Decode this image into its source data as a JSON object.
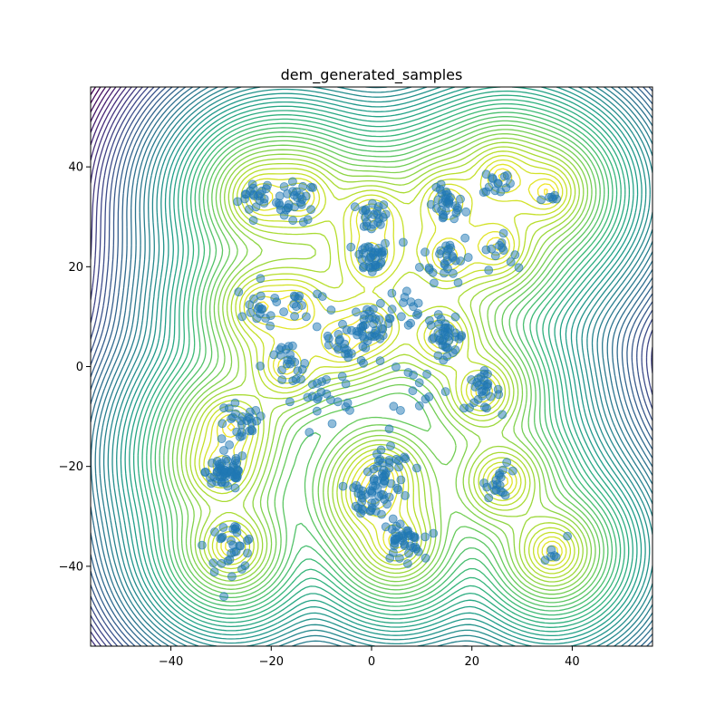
{
  "chart_data": {
    "type": "scatter",
    "title": "dem_generated_samples",
    "xlabel": "",
    "ylabel": "",
    "xlim": [
      -56,
      56
    ],
    "ylim": [
      -56,
      56
    ],
    "xticks": [
      -40,
      -20,
      0,
      20,
      40
    ],
    "yticks": [
      -40,
      -20,
      0,
      20,
      40
    ],
    "xtick_labels": [
      "−40",
      "−20",
      "0",
      "20",
      "40"
    ],
    "ytick_labels": [
      "−40",
      "−20",
      "0",
      "20",
      "40"
    ],
    "background": "contour",
    "contour_colormap": "viridis",
    "point_color": "#1f77b4",
    "point_alpha": 0.5,
    "grid": false,
    "mode_centers": [
      [
        -22,
        34
      ],
      [
        -14,
        34
      ],
      [
        0,
        30
      ],
      [
        15,
        33
      ],
      [
        26,
        38
      ],
      [
        35,
        35
      ],
      [
        0,
        22
      ],
      [
        15,
        22
      ],
      [
        25,
        24
      ],
      [
        -22,
        12
      ],
      [
        -15,
        12
      ],
      [
        0,
        8
      ],
      [
        14,
        6
      ],
      [
        22,
        -5
      ],
      [
        -30,
        -20
      ],
      [
        -28,
        -12
      ],
      [
        2,
        -22
      ],
      [
        0,
        -26
      ],
      [
        26,
        -23
      ],
      [
        -28,
        -36
      ],
      [
        5,
        -35
      ],
      [
        36,
        -37
      ],
      [
        -17,
        0
      ],
      [
        -6,
        5
      ]
    ],
    "point_clusters": [
      {
        "center": [
          -23,
          34
        ],
        "count": 20,
        "spread": 1.8
      },
      {
        "center": [
          -15,
          33
        ],
        "count": 30,
        "spread": 2.0
      },
      {
        "center": [
          0,
          30
        ],
        "count": 22,
        "spread": 1.6
      },
      {
        "center": [
          15,
          32
        ],
        "count": 30,
        "spread": 1.8
      },
      {
        "center": [
          25,
          37
        ],
        "count": 14,
        "spread": 1.4
      },
      {
        "center": [
          35,
          34
        ],
        "count": 6,
        "spread": 1.5
      },
      {
        "center": [
          0,
          22
        ],
        "count": 35,
        "spread": 1.8
      },
      {
        "center": [
          15,
          22
        ],
        "count": 28,
        "spread": 2.5
      },
      {
        "center": [
          25,
          23
        ],
        "count": 12,
        "spread": 1.6
      },
      {
        "center": [
          -22,
          12
        ],
        "count": 18,
        "spread": 2.5
      },
      {
        "center": [
          -15,
          12
        ],
        "count": 14,
        "spread": 2.5
      },
      {
        "center": [
          0,
          8
        ],
        "count": 40,
        "spread": 2.0
      },
      {
        "center": [
          15,
          6
        ],
        "count": 35,
        "spread": 1.8
      },
      {
        "center": [
          22,
          -5
        ],
        "count": 28,
        "spread": 1.8
      },
      {
        "center": [
          -29,
          -21
        ],
        "count": 55,
        "spread": 2.0
      },
      {
        "center": [
          -26,
          -12
        ],
        "count": 26,
        "spread": 2.5
      },
      {
        "center": [
          3,
          -22
        ],
        "count": 40,
        "spread": 2.5
      },
      {
        "center": [
          0,
          -26
        ],
        "count": 28,
        "spread": 2.0
      },
      {
        "center": [
          26,
          -23
        ],
        "count": 18,
        "spread": 1.6
      },
      {
        "center": [
          -28,
          -36
        ],
        "count": 30,
        "spread": 2.5
      },
      {
        "center": [
          6,
          -35
        ],
        "count": 40,
        "spread": 2.0
      },
      {
        "center": [
          36,
          -37
        ],
        "count": 6,
        "spread": 1.5
      },
      {
        "center": [
          -17,
          0
        ],
        "count": 20,
        "spread": 2.5
      },
      {
        "center": [
          -10,
          -6
        ],
        "count": 20,
        "spread": 3.0
      },
      {
        "center": [
          -6,
          4
        ],
        "count": 16,
        "spread": 2.5
      },
      {
        "center": [
          8,
          12
        ],
        "count": 14,
        "spread": 2.5
      },
      {
        "center": [
          10,
          -4
        ],
        "count": 10,
        "spread": 3.0
      },
      {
        "center": [
          0,
          0
        ],
        "count": 12,
        "spread": 10.0
      }
    ]
  }
}
